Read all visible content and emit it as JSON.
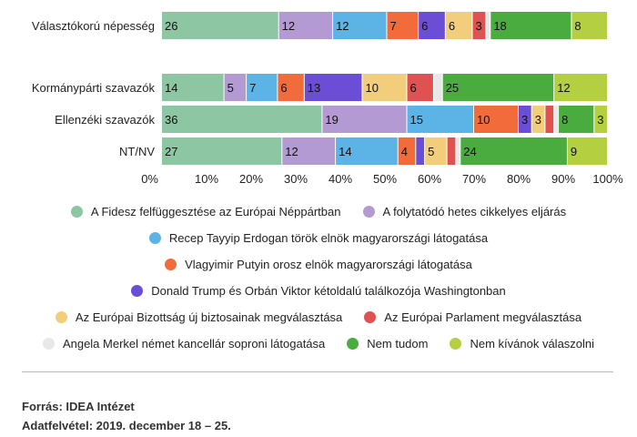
{
  "chart_data": {
    "type": "bar",
    "orientation": "horizontal",
    "stacked": true,
    "categories": [
      "Választókorú népesség",
      "Kormánypárti szavazók",
      "Ellenzéki szavazók",
      "NT/NV"
    ],
    "xlim": [
      0,
      100
    ],
    "x_ticks": [
      "0%",
      "10%",
      "20%",
      "30%",
      "40%",
      "50%",
      "60%",
      "70%",
      "80%",
      "90%",
      "100%"
    ],
    "grid": false,
    "legend_position": "bottom",
    "series": [
      {
        "name": "A Fidesz felfüggesztése az Európai Néppártban",
        "color": "#8cc6a2",
        "values": [
          26,
          14,
          36,
          27
        ]
      },
      {
        "name": "A folytatódó hetes cikkelyes eljárás",
        "color": "#b39ad2",
        "values": [
          12,
          5,
          19,
          12
        ]
      },
      {
        "name": "Recep Tayyip Erdogan török elnök magyarországi látogatása",
        "color": "#5bb4e5",
        "values": [
          12,
          7,
          15,
          14
        ]
      },
      {
        "name": "Vlagyimir Putyin orosz elnök magyarországi látogatása",
        "color": "#f26b3a",
        "values": [
          7,
          6,
          10,
          4
        ]
      },
      {
        "name": "Donald Trump és Orbán Viktor kétoldalú találkozója Washingtonban",
        "color": "#6a4fd6",
        "values": [
          6,
          13,
          3,
          2
        ]
      },
      {
        "name": "Az Európai Bizottság új biztosainak megválasztása",
        "color": "#f1cd7c",
        "values": [
          6,
          10,
          3,
          5
        ]
      },
      {
        "name": "Az Európai Parlament megválasztása",
        "color": "#e05151",
        "values": [
          3,
          6,
          2,
          2
        ]
      },
      {
        "name": "Angela Merkel német kancellár soproni látogatása",
        "color": "#e8e8e8",
        "values": [
          1,
          2,
          1,
          1
        ]
      },
      {
        "name": "Nem tudom",
        "color": "#4aab3e",
        "values": [
          18,
          25,
          8,
          24
        ]
      },
      {
        "name": "Nem kívánok válaszolni",
        "color": "#b4cf40",
        "values": [
          8,
          12,
          3,
          9
        ]
      }
    ],
    "data_labels": [
      [
        "26",
        "12",
        "12",
        "7",
        "6",
        "6",
        "3",
        "",
        "18",
        "8"
      ],
      [
        "14",
        "5",
        "7",
        "6",
        "13",
        "10",
        "6",
        "",
        "25",
        "12"
      ],
      [
        "36",
        "19",
        "15",
        "10",
        "3",
        "3",
        "",
        "",
        "8",
        "3"
      ],
      [
        "27",
        "12",
        "14",
        "4",
        "",
        "5",
        "",
        "",
        "24",
        "9"
      ]
    ]
  },
  "footer": {
    "source": "Forrás: IDEA Intézet",
    "date": "Adatfelvétel: 2019. december 18 – 25."
  }
}
